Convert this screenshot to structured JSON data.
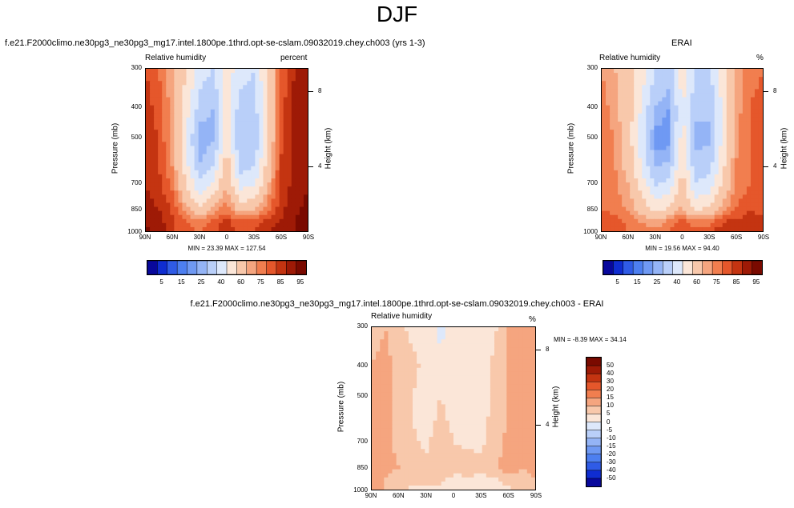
{
  "figure_title": "DJF",
  "chart_data": [
    {
      "type": "heatmap",
      "title": "f.e21.F2000climo.ne30pg3_ne30pg3_mg17.intel.1800pe.1thrd.opt-se-cslam.09032019.chey.ch003 (yrs 1-3)",
      "left_string": "Relative humidity",
      "units": "percent",
      "ylabel": "Pressure (mb)",
      "ylabel_right": "Height (km)",
      "x_ticks": [
        "90N",
        "60N",
        "30N",
        "0",
        "30S",
        "60S",
        "90S"
      ],
      "y_ticks": [
        "300",
        "400",
        "500",
        "700",
        "850",
        "1000"
      ],
      "y_ticks_right": [
        "8",
        "4"
      ],
      "min_max": "MIN = 23.39  MAX = 127.54",
      "colorbar_labels": [
        "5",
        "15",
        "25",
        "40",
        "60",
        "75",
        "85",
        "95"
      ],
      "colorbar_levels": [
        5,
        10,
        15,
        20,
        25,
        30,
        40,
        50,
        60,
        70,
        75,
        80,
        85,
        90,
        95
      ],
      "x_range": [
        90,
        -90
      ],
      "y_range": [
        1000,
        300
      ],
      "rh_by_latitude_and_level": {
        "latitudes": [
          90,
          75,
          60,
          45,
          30,
          15,
          0,
          -15,
          -30,
          -45,
          -60,
          -75,
          -90
        ],
        "pressures": [
          300,
          400,
          500,
          600,
          700,
          850,
          925,
          1000
        ],
        "values": [
          [
            85,
            80,
            70,
            60,
            45,
            40,
            55,
            45,
            40,
            60,
            80,
            90,
            92
          ],
          [
            88,
            82,
            72,
            55,
            35,
            30,
            55,
            35,
            35,
            58,
            82,
            92,
            94
          ],
          [
            90,
            84,
            72,
            50,
            25,
            28,
            60,
            30,
            30,
            58,
            84,
            92,
            95
          ],
          [
            90,
            85,
            74,
            52,
            30,
            38,
            65,
            35,
            38,
            62,
            85,
            92,
            95
          ],
          [
            90,
            86,
            78,
            60,
            42,
            52,
            70,
            45,
            48,
            68,
            86,
            92,
            95
          ],
          [
            92,
            90,
            84,
            72,
            62,
            72,
            78,
            66,
            68,
            78,
            88,
            94,
            96
          ],
          [
            94,
            92,
            86,
            80,
            76,
            82,
            86,
            80,
            80,
            86,
            90,
            95,
            96
          ],
          [
            96,
            94,
            86,
            82,
            80,
            84,
            88,
            84,
            86,
            90,
            92,
            95,
            96
          ]
        ]
      }
    },
    {
      "type": "heatmap",
      "title": "ERAI",
      "left_string": "Relative humidity",
      "units": "%",
      "ylabel": "Pressure (mb)",
      "ylabel_right": "Height (km)",
      "x_ticks": [
        "90N",
        "60N",
        "30N",
        "0",
        "30S",
        "60S",
        "90S"
      ],
      "y_ticks": [
        "300",
        "400",
        "500",
        "700",
        "850",
        "1000"
      ],
      "y_ticks_right": [
        "8",
        "4"
      ],
      "min_max": "MIN = 19.56  MAX = 94.40",
      "colorbar_labels": [
        "5",
        "15",
        "25",
        "40",
        "60",
        "75",
        "85",
        "95"
      ],
      "colorbar_levels": [
        5,
        10,
        15,
        20,
        25,
        30,
        40,
        50,
        60,
        70,
        75,
        80,
        85,
        90,
        95
      ],
      "x_range": [
        90,
        -90
      ],
      "y_range": [
        1000,
        300
      ],
      "rh_by_latitude_and_level": {
        "latitudes": [
          90,
          75,
          60,
          45,
          30,
          15,
          0,
          -15,
          -30,
          -45,
          -60,
          -75,
          -90
        ],
        "pressures": [
          300,
          400,
          500,
          600,
          700,
          850,
          925,
          1000
        ],
        "values": [
          [
            75,
            70,
            65,
            55,
            40,
            35,
            55,
            40,
            38,
            55,
            70,
            78,
            80
          ],
          [
            78,
            72,
            65,
            48,
            30,
            25,
            52,
            32,
            32,
            52,
            72,
            80,
            82
          ],
          [
            80,
            74,
            64,
            45,
            22,
            22,
            55,
            28,
            28,
            52,
            74,
            80,
            82
          ],
          [
            80,
            75,
            66,
            48,
            28,
            30,
            60,
            32,
            34,
            56,
            75,
            80,
            82
          ],
          [
            80,
            76,
            70,
            55,
            38,
            42,
            65,
            40,
            44,
            62,
            76,
            80,
            82
          ],
          [
            80,
            78,
            74,
            66,
            56,
            62,
            72,
            58,
            62,
            72,
            80,
            84,
            84
          ],
          [
            82,
            82,
            78,
            74,
            70,
            76,
            82,
            76,
            76,
            84,
            86,
            88,
            86
          ],
          [
            84,
            84,
            80,
            78,
            76,
            80,
            86,
            82,
            84,
            88,
            88,
            88,
            86
          ]
        ]
      }
    },
    {
      "type": "heatmap",
      "title": "f.e21.F2000climo.ne30pg3_ne30pg3_mg17.intel.1800pe.1thrd.opt-se-cslam.09032019.chey.ch003 - ERAI",
      "left_string": "Relative humidity",
      "units": "%",
      "ylabel": "Pressure (mb)",
      "ylabel_right": "Height (km)",
      "x_ticks": [
        "90N",
        "60N",
        "30N",
        "0",
        "30S",
        "60S",
        "90S"
      ],
      "y_ticks": [
        "300",
        "400",
        "500",
        "700",
        "850",
        "1000"
      ],
      "y_ticks_right": [
        "8",
        "4"
      ],
      "min_max": "MIN = -8.39  MAX = 34.14",
      "colorbar_labels": [
        "50",
        "40",
        "30",
        "20",
        "15",
        "10",
        "5",
        "0",
        "-5",
        "-10",
        "-15",
        "-20",
        "-30",
        "-40",
        "-50"
      ],
      "colorbar_levels": [
        -50,
        -40,
        -30,
        -20,
        -15,
        -10,
        -5,
        0,
        5,
        10,
        15,
        20,
        30,
        40,
        50
      ],
      "x_range": [
        90,
        -90
      ],
      "y_range": [
        1000,
        300
      ],
      "rh_by_latitude_and_level": {
        "latitudes": [
          90,
          75,
          60,
          45,
          30,
          15,
          0,
          -15,
          -30,
          -45,
          -60,
          -75,
          -90
        ],
        "pressures": [
          300,
          400,
          500,
          600,
          700,
          850,
          925,
          1000
        ],
        "values": [
          [
            8,
            10,
            6,
            4,
            4,
            -2,
            2,
            4,
            2,
            4,
            10,
            12,
            12
          ],
          [
            10,
            12,
            8,
            6,
            4,
            3,
            3,
            4,
            3,
            6,
            10,
            12,
            12
          ],
          [
            10,
            12,
            8,
            5,
            3,
            5,
            4,
            3,
            2,
            6,
            10,
            12,
            13
          ],
          [
            10,
            12,
            9,
            5,
            3,
            6,
            4,
            4,
            4,
            6,
            10,
            12,
            13
          ],
          [
            10,
            12,
            8,
            6,
            4,
            8,
            5,
            4,
            4,
            7,
            12,
            14,
            13
          ],
          [
            12,
            12,
            10,
            6,
            6,
            10,
            6,
            8,
            6,
            8,
            14,
            10,
            12
          ],
          [
            12,
            10,
            6,
            6,
            6,
            6,
            4,
            4,
            4,
            4,
            8,
            8,
            10
          ],
          [
            12,
            10,
            6,
            4,
            4,
            4,
            2,
            2,
            2,
            2,
            4,
            6,
            10
          ]
        ]
      }
    }
  ],
  "colors": {
    "rh_palette": [
      "#08089c",
      "#0f2dd1",
      "#2f5be6",
      "#4d7ff0",
      "#6f99f3",
      "#94b4f6",
      "#b9cff9",
      "#dde8fb",
      "#fbe6d8",
      "#f8c8ab",
      "#f5a57f",
      "#f17e4f",
      "#e5572b",
      "#c43411",
      "#9e1a06",
      "#7a0a00"
    ],
    "diff_palette": [
      "#08089c",
      "#0f2dd1",
      "#2f5be6",
      "#4d7ff0",
      "#6f99f3",
      "#94b4f6",
      "#b9cff9",
      "#dde8fb",
      "#fbe6d8",
      "#f8c8ab",
      "#f5a57f",
      "#f17e4f",
      "#e5572b",
      "#c43411",
      "#9e1a06",
      "#7a0a00"
    ]
  }
}
